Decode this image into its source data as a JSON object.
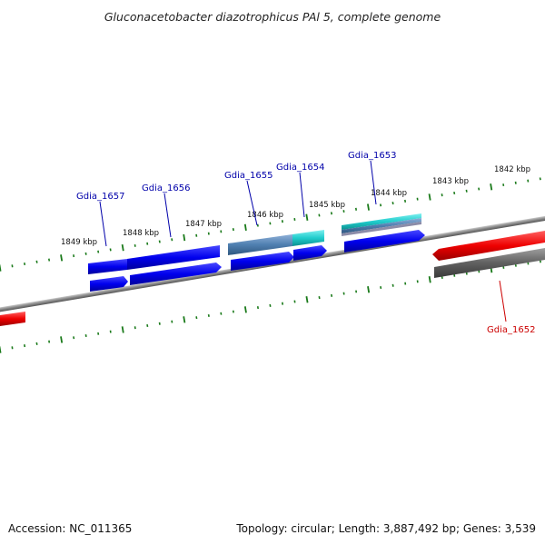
{
  "title": "Gluconacetobacter diazotrophicus PAl 5, complete genome",
  "footer": {
    "accession": "Accession: NC_011365",
    "summary": "Topology: circular; Length: 3,887,492 bp; Genes: 3,539"
  },
  "colors": {
    "forward_gene": "#0000ee",
    "reverse_gene": "#0000ee",
    "highlight_gene": "#ee0000",
    "cyan_gene": "#20cccc",
    "steel_gene": "#4f7fb0",
    "grey_gene": "#606060",
    "backbone": "#888888",
    "tick": "#1a7a1a",
    "label_blue": "#0000aa",
    "label_red": "#cc0000"
  },
  "ticks": {
    "labels": [
      "1849 kbp",
      "1848 kbp",
      "1847 kbp",
      "1846 kbp",
      "1845 kbp",
      "1844 kbp",
      "1843 kbp",
      "1842 kbp"
    ]
  },
  "genes": [
    {
      "name": "Gdia_1657",
      "label_color": "label_blue"
    },
    {
      "name": "Gdia_1656",
      "label_color": "label_blue"
    },
    {
      "name": "Gdia_1655",
      "label_color": "label_blue"
    },
    {
      "name": "Gdia_1654",
      "label_color": "label_blue"
    },
    {
      "name": "Gdia_1653",
      "label_color": "label_blue"
    },
    {
      "name": "Gdia_1652",
      "label_color": "label_red"
    }
  ]
}
